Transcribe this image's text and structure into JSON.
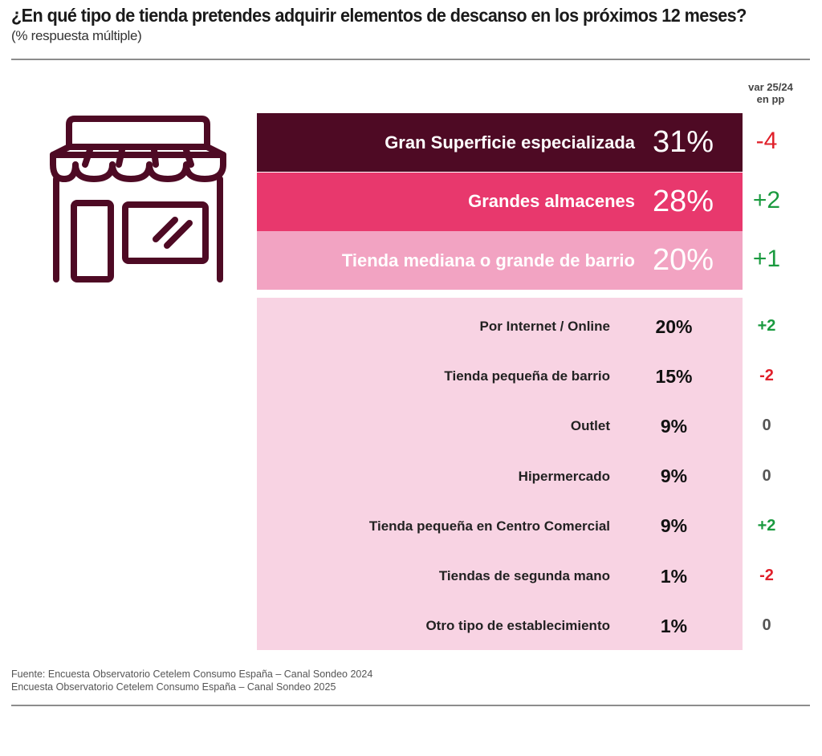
{
  "header": {
    "title": "¿En qué tipo de tienda pretendes adquirir elementos de descanso en los próximos 12 meses?",
    "subtitle": "(% respuesta múltiple)"
  },
  "var_header": {
    "line1": "var 25/24",
    "line2": "en pp"
  },
  "icon": "storefront-icon",
  "colors": {
    "dark": "#4e0a24",
    "pink": "#e8386d",
    "light_pink": "#f2a3c2",
    "pale_pink": "#f8d3e3",
    "positive": "#1a9a3f",
    "negative": "#e0202a",
    "neutral": "#555555"
  },
  "chart_data": {
    "type": "table",
    "rows": [
      {
        "label": "Gran Superficie especializada",
        "pct": "31%",
        "var": "-4"
      },
      {
        "label": "Grandes almacenes",
        "pct": "28%",
        "var": "+2"
      },
      {
        "label": "Tienda mediana o grande de barrio",
        "pct": "20%",
        "var": "+1"
      },
      {
        "label": "Por Internet / Online",
        "pct": "20%",
        "var": "+2"
      },
      {
        "label": "Tienda pequeña de barrio",
        "pct": "15%",
        "var": "-2"
      },
      {
        "label": "Outlet",
        "pct": "9%",
        "var": "0"
      },
      {
        "label": "Hipermercado",
        "pct": "9%",
        "var": "0"
      },
      {
        "label": "Tienda pequeña en Centro Comercial",
        "pct": "9%",
        "var": "+2"
      },
      {
        "label": "Tiendas de segunda mano",
        "pct": "1%",
        "var": "-2"
      },
      {
        "label": "Otro tipo de establecimiento",
        "pct": "1%",
        "var": "0"
      }
    ]
  },
  "source": {
    "line1": "Fuente: Encuesta Observatorio Cetelem Consumo España – Canal Sondeo 2024",
    "line2": "Encuesta Observatorio Cetelem Consumo España – Canal Sondeo 2025"
  }
}
